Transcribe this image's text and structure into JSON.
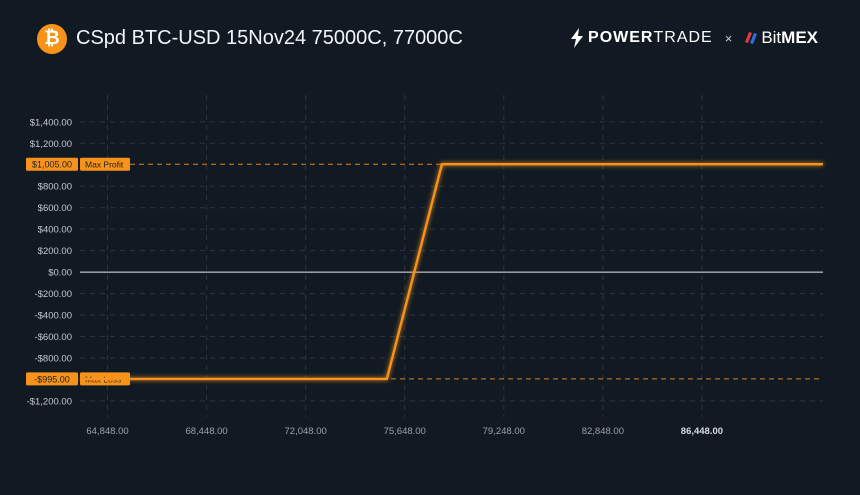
{
  "header": {
    "coin_icon": "bitcoin-icon",
    "title": "CSpd BTC-USD 15Nov24 75000C, 77000C",
    "brand_left": {
      "icon": "lightning-bolt-icon",
      "word_bold": "POWER",
      "word_thin": "TRADE"
    },
    "separator": "×",
    "brand_right": {
      "icon": "bitmex-mark-icon",
      "word_thin": "Bit",
      "word_bold": "MEX"
    }
  },
  "colors": {
    "background": "#111a23",
    "payoff_line": "#f7931a",
    "tag_fill": "#f7931a",
    "grid": "#2b3542",
    "zero_line": "#e6e9ee"
  },
  "chart_data": {
    "type": "line",
    "title": "",
    "xlabel": "",
    "ylabel": "",
    "xlim": [
      63848,
      90848
    ],
    "ylim": [
      -1350,
      1650
    ],
    "x_ticks": [
      {
        "value": 64848,
        "label": "64,848.00"
      },
      {
        "value": 68448,
        "label": "68,448.00"
      },
      {
        "value": 72048,
        "label": "72,048.00"
      },
      {
        "value": 75648,
        "label": "75,648.00"
      },
      {
        "value": 79248,
        "label": "79,248.00"
      },
      {
        "value": 82848,
        "label": "82,848.00"
      },
      {
        "value": 86448,
        "label": "86,448.00"
      }
    ],
    "y_ticks": [
      {
        "value": 1400,
        "label": "$1,400.00"
      },
      {
        "value": 1200,
        "label": "$1,200.00"
      },
      {
        "value": 800,
        "label": "$800.00"
      },
      {
        "value": 600,
        "label": "$600.00"
      },
      {
        "value": 400,
        "label": "$400.00"
      },
      {
        "value": 200,
        "label": "$200.00"
      },
      {
        "value": 0,
        "label": "$0.00"
      },
      {
        "value": -200,
        "label": "-$200.00"
      },
      {
        "value": -400,
        "label": "-$400.00"
      },
      {
        "value": -600,
        "label": "-$600.00"
      },
      {
        "value": -800,
        "label": "-$800.00"
      },
      {
        "value": -1200,
        "label": "-$1,200.00"
      }
    ],
    "series": [
      {
        "x": [
          63848,
          75000,
          77000,
          90848
        ],
        "y": [
          -995,
          -995,
          1005,
          1005
        ]
      }
    ],
    "reference_lines": [
      {
        "value": 1005,
        "value_label": "$1,005.00",
        "label": "Max Profit"
      },
      {
        "value": -995,
        "value_label": "-$995.00",
        "label": "Max Loss"
      }
    ],
    "grid": true,
    "legend": "none"
  }
}
